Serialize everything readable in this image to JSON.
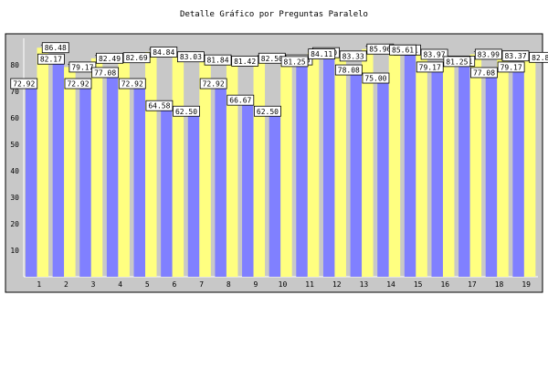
{
  "chart_data": {
    "type": "bar",
    "title": "Detalle Gráfico por Preguntas Paralelo",
    "xlabel": "",
    "ylabel": "",
    "categories": [
      "1",
      "2",
      "3",
      "4",
      "5",
      "6",
      "7",
      "8",
      "9",
      "10",
      "11",
      "12",
      "13",
      "14",
      "15",
      "16",
      "17",
      "18",
      "19"
    ],
    "ylim": [
      0,
      90
    ],
    "yticks": [
      10,
      20,
      30,
      40,
      50,
      60,
      70,
      80
    ],
    "grid": false,
    "legend": "none",
    "series": [
      {
        "color": "#8080ff",
        "values": [
          72.92,
          82.17,
          72.92,
          77.08,
          72.92,
          64.58,
          62.5,
          72.92,
          66.67,
          62.5,
          81.25,
          84.11,
          78.08,
          75.0,
          85.61,
          79.17,
          81.25,
          77.08,
          79.17
        ]
      },
      {
        "color": "#ffff80",
        "values": [
          86.48,
          79.17,
          82.49,
          82.69,
          84.84,
          83.03,
          81.84,
          81.42,
          82.5,
          81.86,
          84.6,
          83.33,
          85.96,
          85.61,
          83.97,
          81.41,
          83.99,
          83.37,
          82.82
        ]
      }
    ],
    "category_label_colors": [
      "#000000",
      "#000000",
      "#000000",
      "#000000",
      "#000000",
      "#000000",
      "#000000",
      "#000000",
      "#000000",
      "#000000",
      "#000000",
      "#000000",
      "#ffffff",
      "#ffffff",
      "#ffffff",
      "#ffffff",
      "#ffffff",
      "#ffffff",
      "#ffffff"
    ],
    "colors": {
      "background": "#ffffff",
      "plot_background": "#c8c8c8",
      "frame": "#000000",
      "label_box": "#ffffff"
    }
  }
}
